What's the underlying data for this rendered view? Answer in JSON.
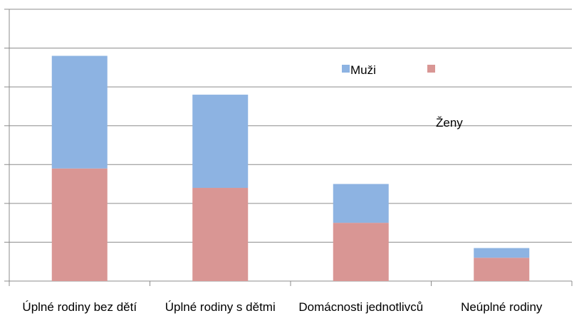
{
  "chart_data": {
    "type": "stacked_bar",
    "categories": [
      "Úplné rodiny bez dětí",
      "Úplné rodiny s dětmi",
      "Domácnosti jednotlivců",
      "Neúplné rodiny"
    ],
    "series": [
      {
        "name": "Ženy",
        "color": "#d99694",
        "values": [
          2.9,
          2.4,
          1.5,
          0.6
        ]
      },
      {
        "name": "Muži",
        "color": "#8db3e2",
        "values": [
          2.9,
          2.4,
          1.0,
          0.25
        ]
      }
    ],
    "ylim": [
      0,
      7
    ],
    "yticks": [
      0,
      1,
      2,
      3,
      4,
      5,
      6,
      7
    ],
    "grid": true
  }
}
